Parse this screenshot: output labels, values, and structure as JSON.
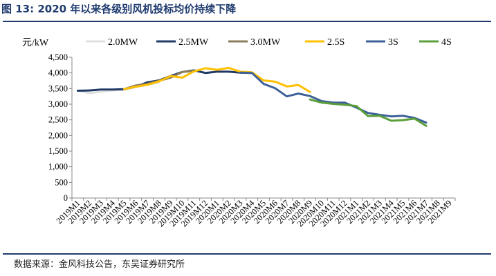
{
  "header": {
    "title": "图 13:  2020 年以来各级别风机投标均价持续下降"
  },
  "footer": {
    "source": "数据来源：金风科技公告，东吴证券研究所"
  },
  "chart_data": {
    "type": "line",
    "title": "",
    "ylabel": "元/kW",
    "xlabel": "",
    "ylim": [
      0,
      4500
    ],
    "y_ticks": [
      "0",
      "500",
      "1,000",
      "1,500",
      "2,000",
      "2,500",
      "3,000",
      "3,500",
      "4,000",
      "4,500"
    ],
    "grid": false,
    "legend_position": "top",
    "categories": [
      "2019M1",
      "2019M2",
      "2019M3",
      "2019M4",
      "2019M5",
      "2019M6",
      "2019M7",
      "2019M8",
      "2019M9",
      "2019M10",
      "2019M11",
      "2019M12",
      "2020M1",
      "2020M2",
      "2020M3",
      "2020M4",
      "2020M5",
      "2020M6",
      "2020M7",
      "2020M8",
      "2020M9",
      "2020M10",
      "2020M11",
      "2020M12",
      "2021M1",
      "2021M2",
      "2021M3",
      "2021M4",
      "2021M5",
      "2021M6",
      "2021M7",
      "2021M8",
      "2021M9"
    ],
    "series": [
      {
        "name": "2.0MW",
        "color": "#e0e0e0",
        "values": [
          3440,
          3350,
          3400,
          3440,
          3460,
          3550,
          3620,
          3700,
          null,
          null,
          null,
          null,
          null,
          null,
          null,
          null,
          null,
          null,
          null,
          null,
          null,
          null,
          null,
          null,
          null,
          null,
          null,
          null,
          null,
          null,
          null,
          null,
          null
        ]
      },
      {
        "name": "2.5MW",
        "color": "#1f3864",
        "values": [
          3430,
          3440,
          3470,
          3470,
          3480,
          3560,
          3700,
          3760,
          3900,
          4030,
          4080,
          4000,
          4040,
          4040,
          4010,
          4000,
          null,
          null,
          null,
          null,
          null,
          null,
          null,
          null,
          null,
          null,
          null,
          null,
          null,
          null,
          null,
          null,
          null
        ]
      },
      {
        "name": "3.0MW",
        "color": "#8b7d5b",
        "values": [
          null,
          null,
          null,
          null,
          3480,
          3600,
          3650,
          3750,
          3850,
          4030,
          4060,
          null,
          null,
          null,
          null,
          null,
          null,
          null,
          null,
          null,
          null,
          null,
          null,
          null,
          null,
          null,
          null,
          null,
          null,
          null,
          null,
          null,
          null
        ]
      },
      {
        "name": "2.5S",
        "color": "#ffc000",
        "values": [
          null,
          null,
          null,
          null,
          3480,
          3560,
          3620,
          3730,
          3900,
          3850,
          4050,
          4150,
          4100,
          4160,
          4040,
          4020,
          3760,
          3720,
          3570,
          3610,
          3390,
          null,
          null,
          null,
          null,
          null,
          null,
          null,
          null,
          null,
          null,
          null,
          null
        ]
      },
      {
        "name": "3S",
        "color": "#3d6098",
        "values": [
          null,
          null,
          null,
          null,
          null,
          null,
          null,
          null,
          null,
          null,
          null,
          null,
          null,
          null,
          4010,
          4000,
          3650,
          3510,
          3250,
          3340,
          3260,
          3100,
          3050,
          3050,
          2890,
          2720,
          2660,
          2610,
          2630,
          2560,
          2410,
          null,
          null
        ]
      },
      {
        "name": "4S",
        "color": "#5a9e3a",
        "values": [
          null,
          null,
          null,
          null,
          null,
          null,
          null,
          null,
          null,
          null,
          null,
          null,
          null,
          null,
          null,
          null,
          null,
          null,
          null,
          null,
          3150,
          3050,
          3010,
          2980,
          2940,
          2620,
          2630,
          2470,
          2490,
          2540,
          2310,
          null,
          null
        ]
      }
    ]
  }
}
